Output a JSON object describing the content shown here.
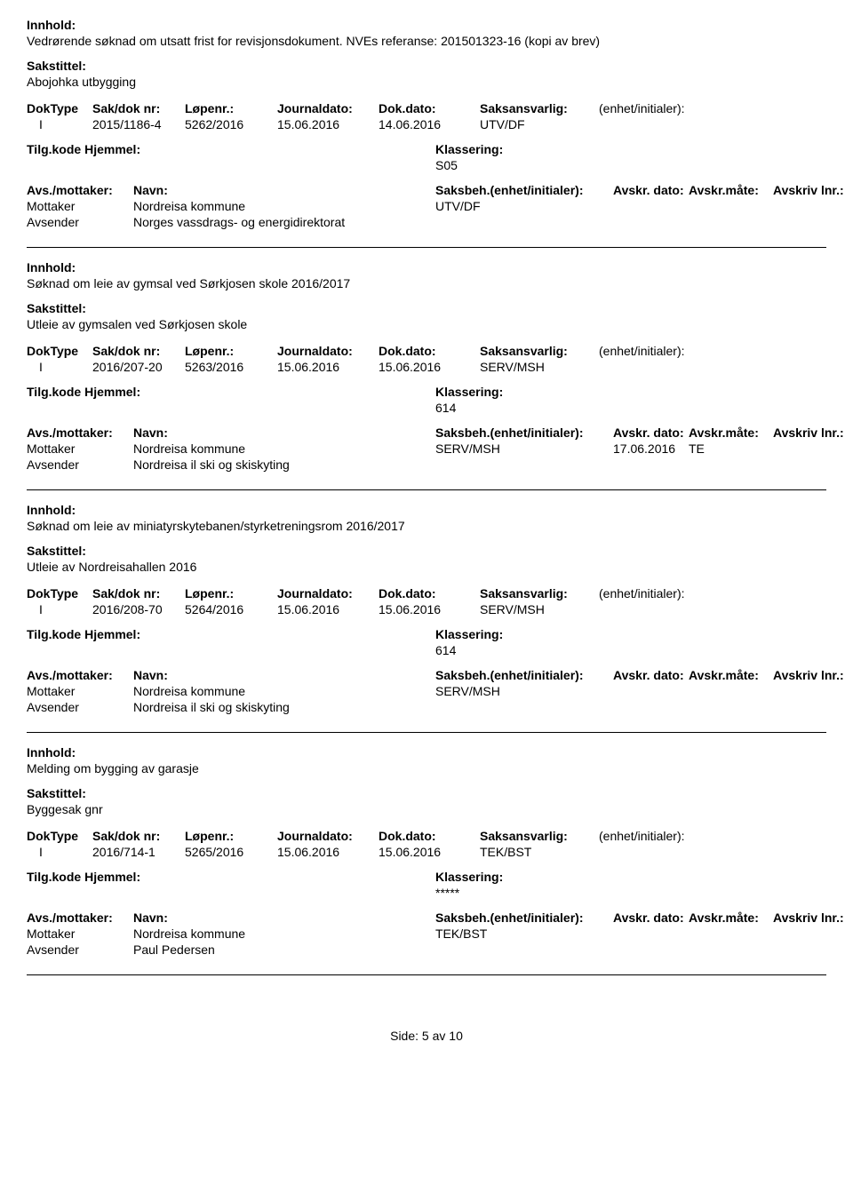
{
  "labels": {
    "innhold": "Innhold:",
    "sakstittel": "Sakstittel:",
    "doktype": "DokType",
    "sakdoknr": "Sak/dok nr:",
    "lopenr": "Løpenr.:",
    "journaldato": "Journaldato:",
    "dokdato": "Dok.dato:",
    "saksansvarlig": "Saksansvarlig:",
    "enhet": "(enhet/initialer):",
    "tilgkode": "Tilg.kode",
    "hjemmel": "Hjemmel:",
    "klassering": "Klassering:",
    "avsmottaker": "Avs./mottaker:",
    "navn": "Navn:",
    "saksbeh": "Saksbeh.(enhet/initialer):",
    "avskrdato": "Avskr. dato:",
    "avskrmate": "Avskr.måte:",
    "avskrivlnr": "Avskriv lnr.:",
    "mottaker": "Mottaker",
    "avsender": "Avsender"
  },
  "entries": [
    {
      "innhold": "Vedrørende søknad om utsatt frist for revisjonsdokument. NVEs referanse: 201501323-16 (kopi av brev)",
      "sakstittel": "Abojohka utbygging",
      "doktype": "I",
      "sakdoknr": "2015/1186-4",
      "lopenr": "5262/2016",
      "journaldato": "15.06.2016",
      "dokdato": "14.06.2016",
      "saksansvarlig": "UTV/DF",
      "klassering": "S05",
      "mottaker": "Nordreisa kommune",
      "saksbeh": "UTV/DF",
      "avskrdato": "",
      "avskrmate": "",
      "avsender": "Norges vassdrags- og energidirektorat"
    },
    {
      "innhold": "Søknad om leie av gymsal ved Sørkjosen skole 2016/2017",
      "sakstittel": "Utleie av gymsalen ved Sørkjosen skole",
      "doktype": "I",
      "sakdoknr": "2016/207-20",
      "lopenr": "5263/2016",
      "journaldato": "15.06.2016",
      "dokdato": "15.06.2016",
      "saksansvarlig": "SERV/MSH",
      "klassering": "614",
      "mottaker": "Nordreisa kommune",
      "saksbeh": "SERV/MSH",
      "avskrdato": "17.06.2016",
      "avskrmate": "TE",
      "avsender": "Nordreisa il ski og skiskyting"
    },
    {
      "innhold": "Søknad om leie av miniatyrskytebanen/styrketreningsrom 2016/2017",
      "sakstittel": "Utleie av Nordreisahallen 2016",
      "doktype": "I",
      "sakdoknr": "2016/208-70",
      "lopenr": "5264/2016",
      "journaldato": "15.06.2016",
      "dokdato": "15.06.2016",
      "saksansvarlig": "SERV/MSH",
      "klassering": "614",
      "mottaker": "Nordreisa kommune",
      "saksbeh": "SERV/MSH",
      "avskrdato": "",
      "avskrmate": "",
      "avsender": "Nordreisa il ski og skiskyting"
    },
    {
      "innhold": "Melding om bygging av garasje",
      "sakstittel": "Byggesak gnr",
      "doktype": "I",
      "sakdoknr": "2016/714-1",
      "lopenr": "5265/2016",
      "journaldato": "15.06.2016",
      "dokdato": "15.06.2016",
      "saksansvarlig": "TEK/BST",
      "klassering": "*****",
      "mottaker": "Nordreisa kommune",
      "saksbeh": "TEK/BST",
      "avskrdato": "",
      "avskrmate": "",
      "avsender": "Paul Pedersen"
    }
  ],
  "footer": {
    "side": "Side:",
    "page": "5",
    "av": "av",
    "total": "10"
  }
}
